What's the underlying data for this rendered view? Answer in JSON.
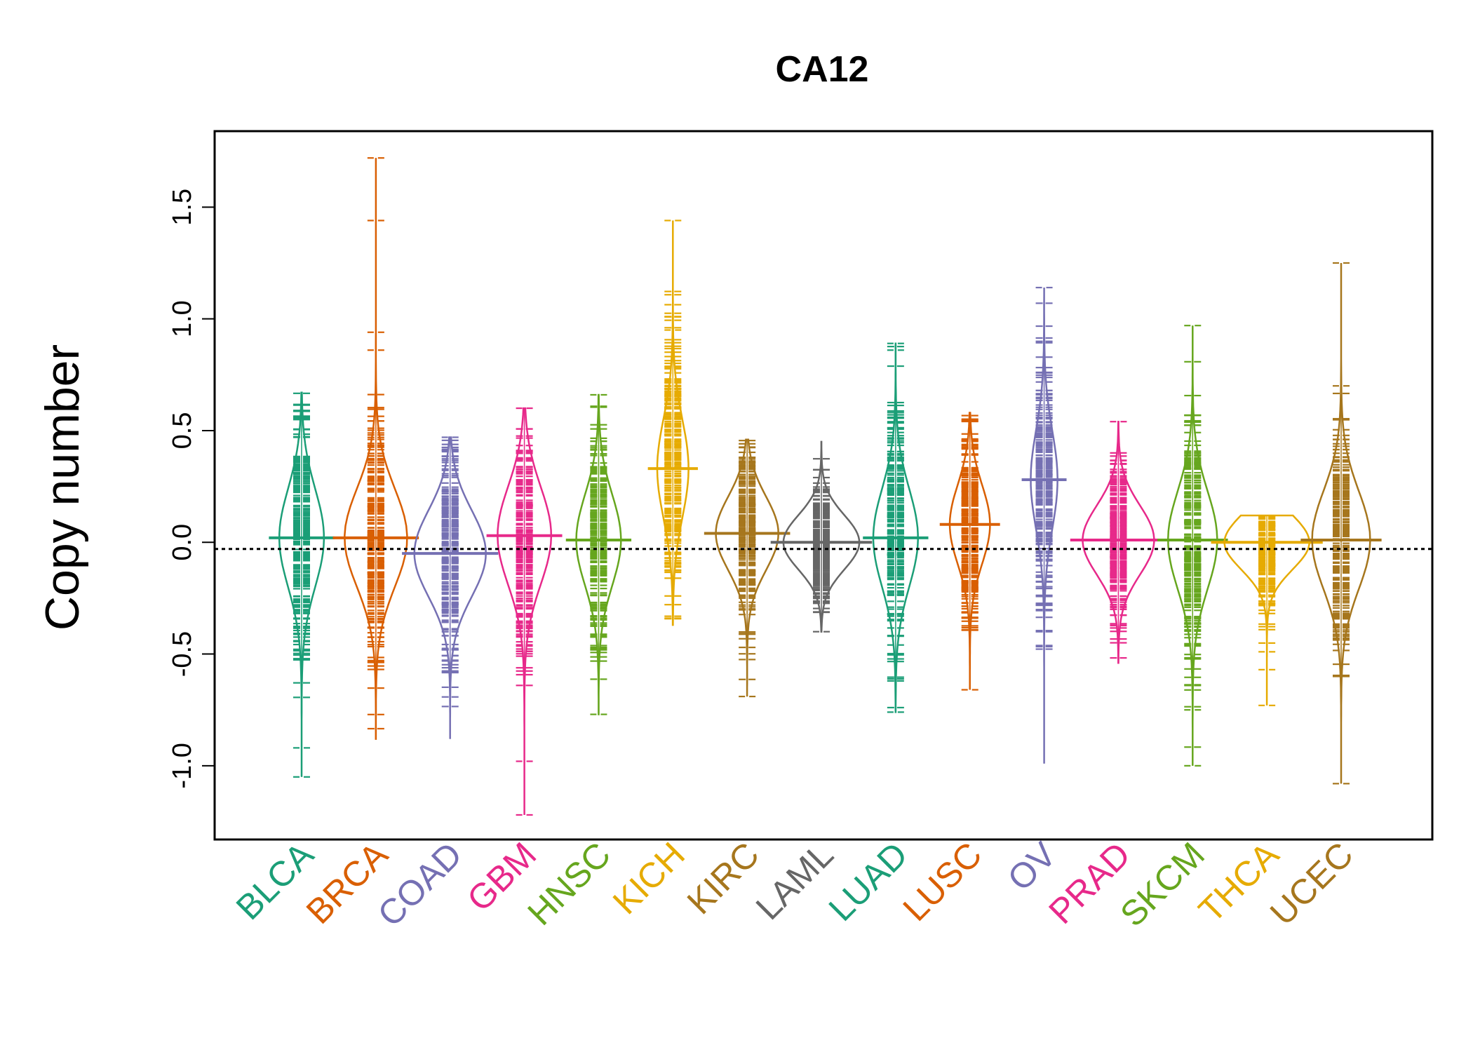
{
  "chart_data": {
    "type": "beanplot",
    "title": "CA12",
    "xlabel": "",
    "ylabel": "Copy number",
    "ylim": [
      -1.33,
      1.84
    ],
    "yticks": [
      -1.0,
      -0.5,
      0.0,
      0.5,
      1.0,
      1.5
    ],
    "ytick_labels": [
      "-1.0",
      "-0.5",
      "0.0",
      "0.5",
      "1.0",
      "1.5"
    ],
    "reference_line": -0.03,
    "grid": false,
    "legend": "none",
    "categories": [
      "BLCA",
      "BRCA",
      "COAD",
      "GBM",
      "HNSC",
      "KICH",
      "KIRC",
      "LAML",
      "LUAD",
      "LUSC",
      "OV",
      "PRAD",
      "SKCM",
      "THCA",
      "UCEC"
    ],
    "colors": [
      "#1b9e77",
      "#d95f02",
      "#7570b3",
      "#e7298a",
      "#66a61e",
      "#e6ab02",
      "#a6761d",
      "#666666",
      "#1b9e77",
      "#d95f02",
      "#7570b3",
      "#e7298a",
      "#66a61e",
      "#e6ab02",
      "#a6761d"
    ],
    "series": [
      {
        "min": -1.05,
        "max": 0.67,
        "median": 0.02,
        "bean_width": 0.1,
        "outliers": [
          -0.92,
          -1.05
        ]
      },
      {
        "min": -0.88,
        "max": 1.72,
        "median": 0.02,
        "bean_width": 0.14,
        "outliers": [
          0.86,
          0.94,
          1.44,
          1.72
        ]
      },
      {
        "min": -0.88,
        "max": 0.47,
        "median": -0.05,
        "bean_width": 0.16,
        "outliers": [
          0.47
        ]
      },
      {
        "min": -1.22,
        "max": 0.6,
        "median": 0.03,
        "bean_width": 0.12,
        "outliers": [
          0.6,
          -0.98,
          -1.22
        ]
      },
      {
        "min": -0.77,
        "max": 0.66,
        "median": 0.01,
        "bean_width": 0.1,
        "outliers": [
          0.66,
          -0.77
        ]
      },
      {
        "min": -0.37,
        "max": 1.44,
        "median": 0.33,
        "bean_width": 0.07,
        "outliers": [
          0.95,
          1.44
        ]
      },
      {
        "min": -0.69,
        "max": 0.46,
        "median": 0.04,
        "bean_width": 0.14,
        "outliers": [
          -0.69
        ]
      },
      {
        "min": -0.4,
        "max": 0.45,
        "median": 0.0,
        "bean_width": 0.17,
        "outliers": [
          -0.4
        ]
      },
      {
        "min": -0.76,
        "max": 0.89,
        "median": 0.02,
        "bean_width": 0.1,
        "outliers": [
          0.86,
          0.89,
          -0.76
        ]
      },
      {
        "min": -0.66,
        "max": 0.58,
        "median": 0.08,
        "bean_width": 0.09,
        "outliers": [
          -0.66
        ]
      },
      {
        "min": -0.99,
        "max": 1.14,
        "median": 0.28,
        "bean_width": 0.06,
        "outliers": [
          1.14
        ]
      },
      {
        "min": -0.54,
        "max": 0.54,
        "median": 0.01,
        "bean_width": 0.16,
        "outliers": [
          0.4,
          0.54
        ]
      },
      {
        "min": -1.0,
        "max": 0.97,
        "median": 0.01,
        "bean_width": 0.11,
        "outliers": [
          0.97,
          -0.75,
          -1.0
        ]
      },
      {
        "min": -0.73,
        "max": 0.12,
        "median": 0.0,
        "bean_width": 0.19,
        "outliers": [
          -0.49,
          -0.57,
          -0.73
        ]
      },
      {
        "min": -1.08,
        "max": 1.25,
        "median": 0.01,
        "bean_width": 0.13,
        "outliers": [
          1.25,
          0.7,
          -1.08
        ]
      }
    ]
  }
}
